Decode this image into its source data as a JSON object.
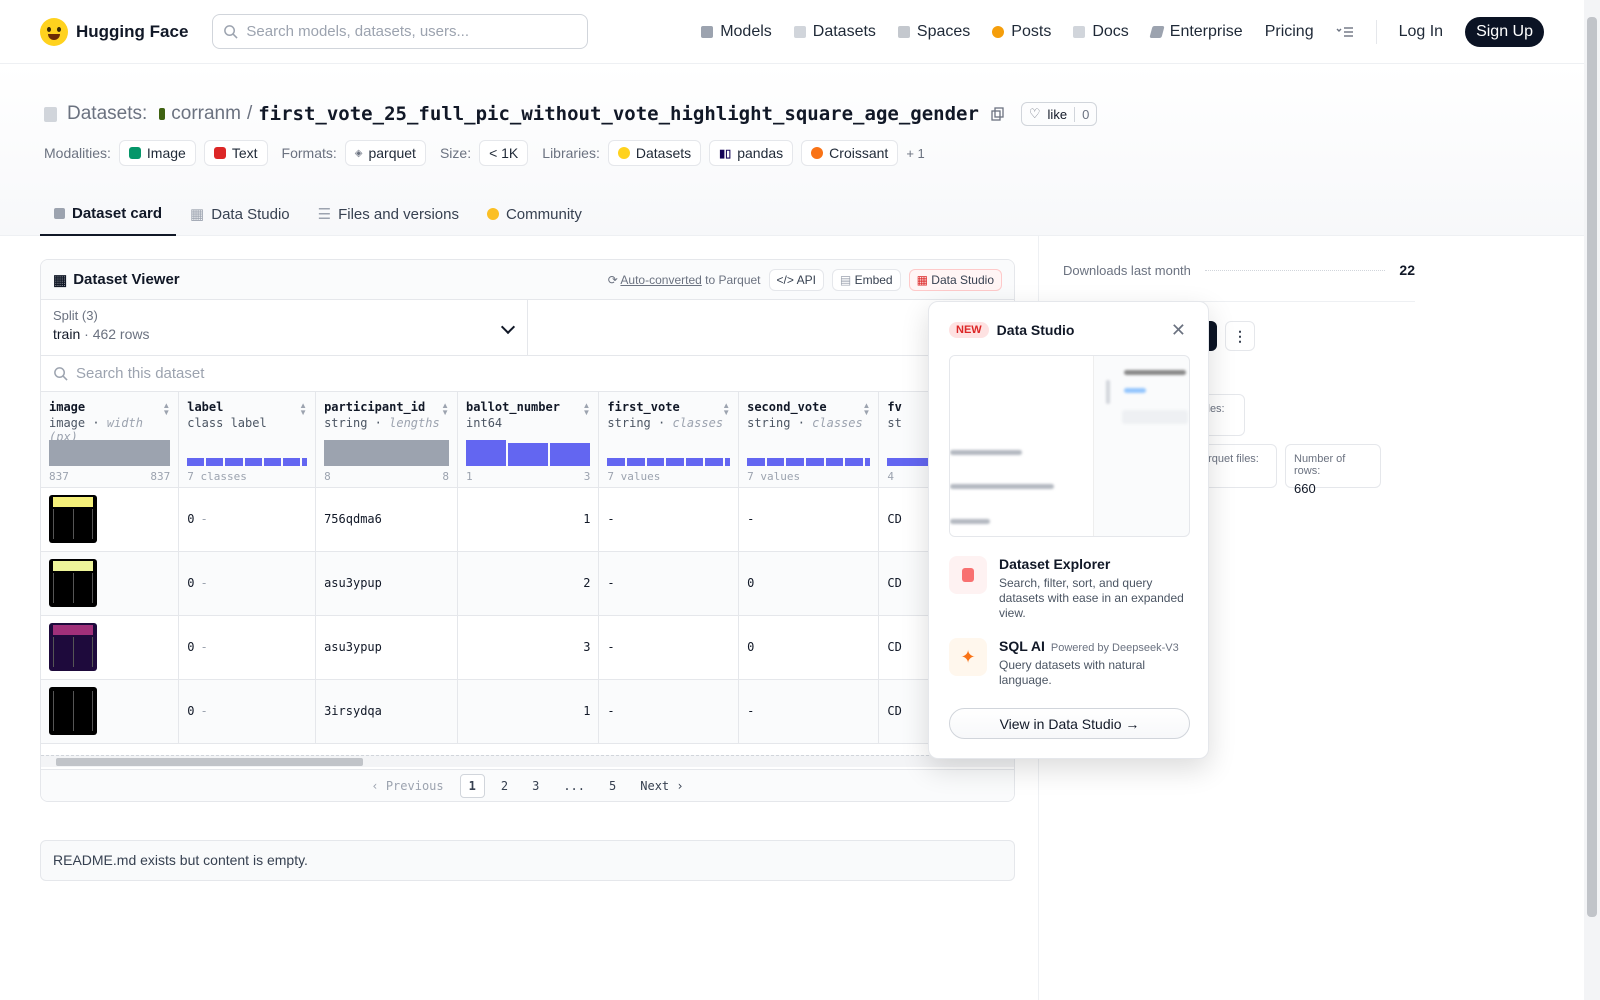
{
  "brand": {
    "name": "Hugging Face"
  },
  "search": {
    "placeholder": "Search models, datasets, users..."
  },
  "nav": {
    "items": [
      {
        "label": "Models",
        "icon": "cube-icon",
        "color": "#6b7280"
      },
      {
        "label": "Datasets",
        "icon": "database-icon",
        "color": "#9ca3af"
      },
      {
        "label": "Spaces",
        "icon": "grid-icon",
        "color": "#9ca3af"
      },
      {
        "label": "Posts",
        "icon": "chat-icon",
        "color": "#f59e0b"
      },
      {
        "label": "Docs",
        "icon": "book-icon",
        "color": "#9ca3af"
      },
      {
        "label": "Enterprise",
        "icon": "enterprise-icon",
        "color": "#6b7280"
      },
      {
        "label": "Pricing"
      }
    ],
    "login": "Log In",
    "signup": "Sign Up"
  },
  "header": {
    "section": "Datasets:",
    "owner": "corranm",
    "separator": "/",
    "name": "first_vote_25_full_pic_without_vote_highlight_square_age_gender",
    "like_label": "like",
    "like_count": "0",
    "meta": {
      "modalities_label": "Modalities:",
      "modalities": [
        "Image",
        "Text"
      ],
      "formats_label": "Formats:",
      "format": "parquet",
      "size_label": "Size:",
      "size": "< 1K",
      "libraries_label": "Libraries:",
      "libraries": [
        "Datasets",
        "pandas",
        "Croissant"
      ],
      "more": "+ 1"
    },
    "tabs": [
      "Dataset card",
      "Data Studio",
      "Files and versions",
      "Community"
    ]
  },
  "viewer": {
    "title": "Dataset Viewer",
    "auto_converted": "Auto-converted",
    "to_parquet": " to Parquet",
    "api": "API",
    "embed": "Embed",
    "data_studio": "Data Studio",
    "split_label": "Split (3)",
    "split_value": "train",
    "split_rows": "462 rows",
    "search_placeholder": "Search this dataset",
    "columns": [
      {
        "name": "image",
        "type": "image",
        "sub": "width (px)",
        "min": "837",
        "max": "837"
      },
      {
        "name": "label",
        "type": "class label",
        "sub": "",
        "min": "7 classes",
        "max": ""
      },
      {
        "name": "participant_id",
        "type": "string",
        "sub": "lengths",
        "min": "8",
        "max": "8"
      },
      {
        "name": "ballot_number",
        "type": "int64",
        "sub": "",
        "min": "1",
        "max": "3"
      },
      {
        "name": "first_vote",
        "type": "string",
        "sub": "classes",
        "min": "7 values",
        "max": ""
      },
      {
        "name": "second_vote",
        "type": "string",
        "sub": "classes",
        "min": "7 values",
        "max": ""
      },
      {
        "name": "fv",
        "type": "st",
        "sub": "",
        "min": "4",
        "max": ""
      }
    ],
    "rows": [
      {
        "thumb_color": "#f5f07a",
        "label": "0",
        "label_name": "-",
        "participant_id": "756qdma6",
        "ballot_number": "1",
        "first_vote": "-",
        "second_vote": "-",
        "fv": "CD"
      },
      {
        "thumb_color": "#eef59a",
        "label": "0",
        "label_name": "-",
        "participant_id": "asu3ypup",
        "ballot_number": "2",
        "first_vote": "-",
        "second_vote": "0",
        "fv": "CD"
      },
      {
        "thumb_color": "#a0307a",
        "label": "0",
        "label_name": "-",
        "participant_id": "asu3ypup",
        "ballot_number": "3",
        "first_vote": "-",
        "second_vote": "0",
        "fv": "CD"
      },
      {
        "thumb_color": "#000000",
        "label": "0",
        "label_name": "-",
        "participant_id": "3irsydqa",
        "ballot_number": "1",
        "first_vote": "-",
        "second_vote": "-",
        "fv": "CD"
      }
    ],
    "pager": {
      "previous": "Previous",
      "pages": [
        "1",
        "2",
        "3",
        "...",
        "5"
      ],
      "next": "Next"
    }
  },
  "readme": "README.md exists but content is empty.",
  "sidebar": {
    "downloads_label": "Downloads last month",
    "downloads_value": "22",
    "files_label": "files:",
    "parquet_label": "arquet files:",
    "rows_label": "Number of rows:",
    "rows_value": "660"
  },
  "popover": {
    "badge": "NEW",
    "title": "Data Studio",
    "close": "✕",
    "explorer_title": "Dataset Explorer",
    "explorer_desc": "Search, filter, sort, and query datasets with ease in an expanded view.",
    "sql_title": "SQL AI",
    "sql_powered": "Powered by Deepseek-V3",
    "sql_desc": "Query datasets with natural language.",
    "cta": "View in Data Studio →"
  }
}
